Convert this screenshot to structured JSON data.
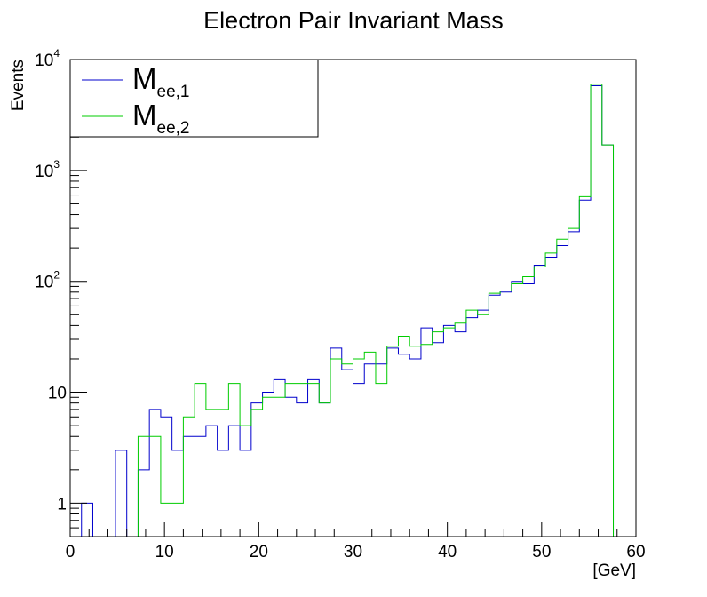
{
  "chart_data": {
    "type": "histogram",
    "title": "Electron Pair Invariant Mass",
    "xlabel": "[GeV]",
    "ylabel": "Events",
    "xlim": [
      0,
      60
    ],
    "ylim": [
      0.5,
      10000
    ],
    "yscale": "log",
    "bin_width": 1.2,
    "x_ticks": [
      0,
      10,
      20,
      30,
      40,
      50,
      60
    ],
    "y_ticks": [
      {
        "value": 1,
        "base": "1",
        "exp": ""
      },
      {
        "value": 10,
        "base": "10",
        "exp": ""
      },
      {
        "value": 100,
        "base": "10",
        "exp": "2"
      },
      {
        "value": 1000,
        "base": "10",
        "exp": "3"
      },
      {
        "value": 10000,
        "base": "10",
        "exp": "4"
      }
    ],
    "legend_position": "top-left",
    "series": [
      {
        "name": "M",
        "subscript": "ee,1",
        "color": "#0000cc",
        "values": [
          0,
          1,
          0,
          0,
          3,
          0,
          2,
          7,
          6,
          3,
          4,
          4,
          5,
          3,
          5,
          3,
          8,
          10,
          13,
          9,
          8,
          13,
          8,
          25,
          16,
          12,
          18,
          18,
          25,
          22,
          20,
          38,
          28,
          40,
          35,
          47,
          55,
          75,
          80,
          100,
          95,
          140,
          165,
          210,
          280,
          540,
          5800,
          1700,
          0,
          0
        ]
      },
      {
        "name": "M",
        "subscript": "ee,2",
        "color": "#00cc00",
        "values": [
          0,
          0,
          0,
          0,
          0,
          0,
          4,
          4,
          1,
          1,
          6,
          12,
          7,
          7,
          12,
          5,
          7,
          9,
          9,
          12,
          12,
          12,
          8,
          20,
          18,
          20,
          23,
          12,
          26,
          32,
          26,
          27,
          35,
          38,
          42,
          55,
          50,
          78,
          82,
          95,
          110,
          135,
          180,
          240,
          300,
          580,
          6000,
          1700,
          0,
          0
        ]
      }
    ]
  }
}
